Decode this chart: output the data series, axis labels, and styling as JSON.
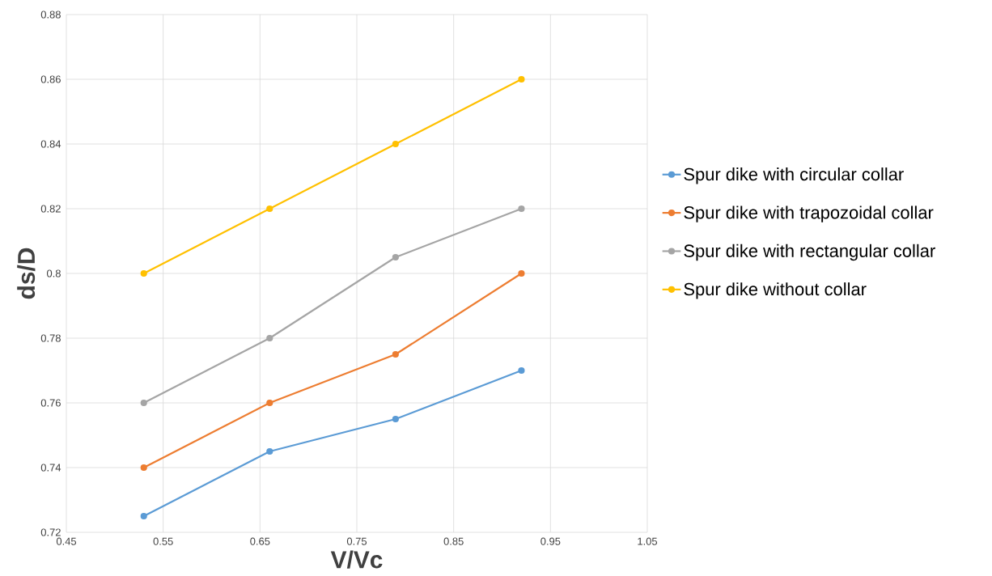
{
  "chart_data": {
    "type": "line",
    "xlabel": "V/Vc",
    "ylabel": "ds/D",
    "x": [
      0.53,
      0.66,
      0.79,
      0.92
    ],
    "series": [
      {
        "name": "Spur dike with circular collar",
        "color": "#5b9bd5",
        "values": [
          0.725,
          0.745,
          0.755,
          0.77
        ]
      },
      {
        "name": "Spur dike with trapozoidal collar",
        "color": "#ed7d31",
        "values": [
          0.74,
          0.76,
          0.775,
          0.8
        ]
      },
      {
        "name": "Spur dike with rectangular collar",
        "color": "#a5a5a5",
        "values": [
          0.76,
          0.78,
          0.805,
          0.82
        ]
      },
      {
        "name": "Spur dike without collar",
        "color": "#ffc000",
        "values": [
          0.8,
          0.82,
          0.84,
          0.86
        ]
      }
    ],
    "xlim": [
      0.45,
      1.05
    ],
    "xticks": [
      0.45,
      0.55,
      0.65,
      0.75,
      0.85,
      0.95,
      1.05
    ],
    "ylim": [
      0.72,
      0.88
    ],
    "yticks": [
      0.72,
      0.74,
      0.76,
      0.78,
      0.8,
      0.82,
      0.84,
      0.86,
      0.88
    ],
    "grid": true,
    "legend": "right",
    "marker": "circle",
    "line_style": "solid"
  }
}
